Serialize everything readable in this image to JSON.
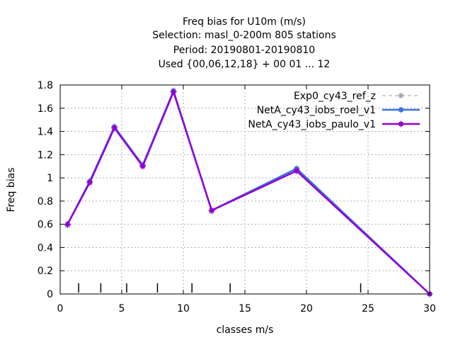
{
  "chart_data": {
    "type": "line",
    "title": [
      "Freq bias  for U10m (m/s)",
      "Selection: masl_0-200m    805 stations",
      "Period: 20190801-20190810",
      "Used {00,06,12,18} + 00 01 ... 12"
    ],
    "xlabel": "classes m/s",
    "ylabel": "Freq bias",
    "xlim": [
      0,
      30
    ],
    "ylim": [
      0,
      1.8
    ],
    "xticks": [
      0,
      5,
      10,
      15,
      20,
      25,
      30
    ],
    "xtick_labels": [
      "0",
      "5",
      "10",
      "15",
      "20",
      "25",
      "30"
    ],
    "yticks": [
      0,
      0.2,
      0.4,
      0.6,
      0.8,
      1.0,
      1.2,
      1.4,
      1.6,
      1.8
    ],
    "ytick_labels": [
      "0",
      "0.2",
      "0.4",
      "0.6",
      "0.8",
      "1",
      "1.2",
      "1.4",
      "1.6",
      "1.8"
    ],
    "grid": true,
    "legend_position": "top-right",
    "class_bounds": [
      1.5,
      3.3,
      5.4,
      7.9,
      10.7,
      13.8,
      24.4
    ],
    "series": [
      {
        "name": "Exp0_cy43_ref_z",
        "color": "#a0a0a0",
        "dash": true,
        "x": [
          0.6,
          2.4,
          4.4,
          6.7,
          9.2,
          12.3,
          19.2,
          30.0
        ],
        "y": [
          0.59,
          0.96,
          1.43,
          1.1,
          1.74,
          0.71,
          1.07,
          0.0
        ]
      },
      {
        "name": "NetA_cy43_iobs_roel_v1",
        "color": "#3b73d9",
        "dash": false,
        "x": [
          0.6,
          2.4,
          4.4,
          6.7,
          9.2,
          12.3,
          19.2,
          30.0
        ],
        "y": [
          0.6,
          0.97,
          1.44,
          1.11,
          1.75,
          0.72,
          1.08,
          0.0
        ]
      },
      {
        "name": "NetA_cy43_iobs_paulo_v1",
        "color": "#9400d3",
        "dash": false,
        "x": [
          0.6,
          2.4,
          4.4,
          6.7,
          9.2,
          12.3,
          19.2,
          30.0
        ],
        "y": [
          0.6,
          0.96,
          1.43,
          1.1,
          1.74,
          0.72,
          1.06,
          0.0
        ]
      }
    ]
  }
}
